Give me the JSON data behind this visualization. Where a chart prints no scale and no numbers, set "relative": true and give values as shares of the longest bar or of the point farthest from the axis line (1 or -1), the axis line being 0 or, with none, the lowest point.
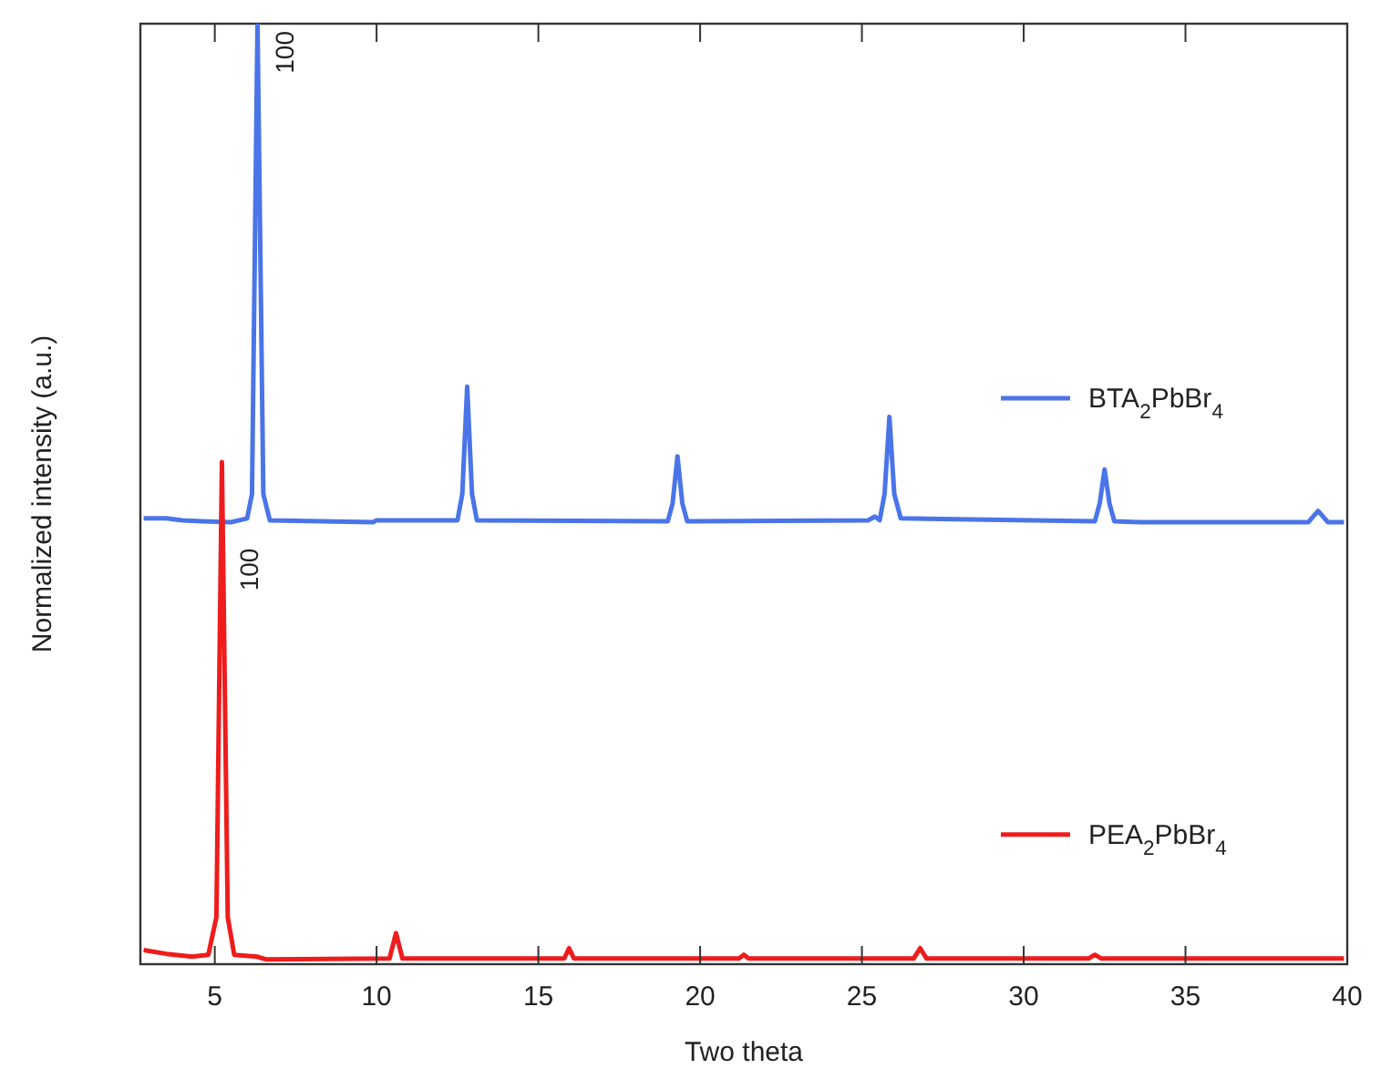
{
  "chart_data": {
    "type": "line",
    "relative": true,
    "xlabel": "Two theta",
    "ylabel": "Normalized intensity (a.u.)",
    "xlim": [
      2.7,
      40
    ],
    "xticks": [
      5,
      10,
      15,
      20,
      25,
      30,
      35,
      40
    ],
    "tick_labels": "x",
    "grid": false,
    "legend": "right",
    "marker": "none",
    "line_style": "solid",
    "annotations": [
      {
        "text": "100",
        "x": 6.32,
        "y": 1
      },
      {
        "text": "100",
        "x": 5.22,
        "y": 0.45
      }
    ],
    "series": [
      {
        "name": "BTA$_{2}$PbBr$_{4}$",
        "color": "#4a74e8",
        "x": [
          2.8,
          3.5,
          4.0,
          4.6,
          5.5,
          6.0,
          6.15,
          6.32,
          6.5,
          6.7,
          9.9,
          10.0,
          12.5,
          12.65,
          12.8,
          12.95,
          13.1,
          19.0,
          19.15,
          19.3,
          19.45,
          19.6,
          25.2,
          25.4,
          25.55,
          25.7,
          25.85,
          26.0,
          26.2,
          32.2,
          32.35,
          32.5,
          32.65,
          32.8,
          33.6,
          38.8,
          39.1,
          39.4,
          39.9
        ],
        "values": [
          0.474,
          0.474,
          0.472,
          0.471,
          0.47,
          0.474,
          0.5,
          1,
          0.5,
          0.472,
          0.47,
          0.472,
          0.472,
          0.5,
          0.614,
          0.5,
          0.472,
          0.471,
          0.49,
          0.54,
          0.49,
          0.471,
          0.472,
          0.476,
          0.472,
          0.5,
          0.582,
          0.5,
          0.474,
          0.471,
          0.49,
          0.526,
          0.49,
          0.471,
          0.47,
          0.47,
          0.482,
          0.47,
          0.47
        ]
      },
      {
        "name": "PEA$_{2}$PbBr$_{4}$",
        "color": "#ee1c1c",
        "x": [
          2.8,
          3.5,
          4.3,
          4.8,
          5.05,
          5.22,
          5.4,
          5.6,
          6.3,
          6.6,
          10.4,
          10.6,
          10.8,
          15.8,
          15.95,
          16.1,
          21.2,
          21.35,
          21.5,
          26.6,
          26.8,
          27.0,
          32.0,
          32.2,
          32.4,
          39.9
        ],
        "values": [
          0.015,
          0.011,
          0.008,
          0.01,
          0.05,
          0.534,
          0.05,
          0.01,
          0.008,
          0.005,
          0.006,
          0.033,
          0.006,
          0.006,
          0.017,
          0.006,
          0.006,
          0.01,
          0.006,
          0.006,
          0.017,
          0.006,
          0.006,
          0.01,
          0.006,
          0.006
        ]
      }
    ]
  }
}
